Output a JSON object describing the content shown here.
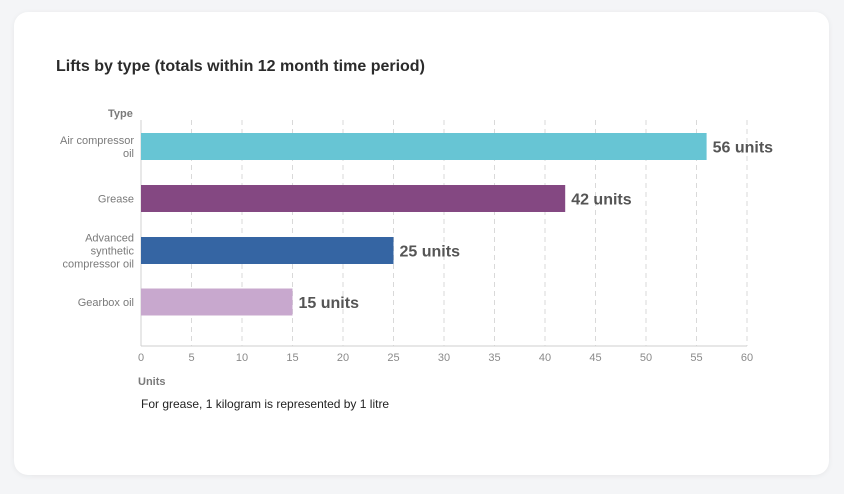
{
  "chart_data": {
    "type": "bar",
    "orientation": "horizontal",
    "title": "Lifts by type (totals within 12 month time period)",
    "ylabel": "Type",
    "xlabel": "Units",
    "categories": [
      [
        "Air compressor",
        "oil"
      ],
      [
        "Grease"
      ],
      [
        "Advanced",
        "synthetic",
        "compressor oil"
      ],
      [
        "Gearbox oil"
      ]
    ],
    "values": [
      56,
      42,
      25,
      15
    ],
    "value_labels": [
      "56 units",
      "42 units",
      "25 units",
      "15 units"
    ],
    "colors": [
      "#67c5d4",
      "#844882",
      "#3565a3",
      "#c8a8ce"
    ],
    "xlim": [
      0,
      60
    ],
    "xticks": [
      0,
      5,
      10,
      15,
      20,
      25,
      30,
      35,
      40,
      45,
      50,
      55,
      60
    ],
    "grid": "vertical dashed",
    "footnote": "For grease, 1 kilogram is represented by 1 litre"
  }
}
